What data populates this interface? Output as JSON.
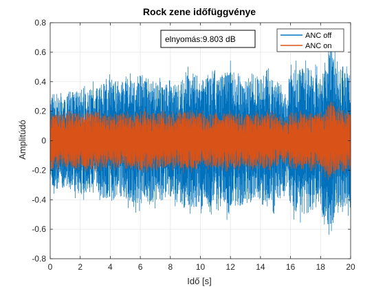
{
  "chart_data": {
    "type": "line",
    "title": "Rock zene időfüggvénye",
    "xlabel": "Idő [s]",
    "ylabel": "Amplitúdó",
    "xlim": [
      0,
      20
    ],
    "ylim": [
      -0.8,
      0.8
    ],
    "x_ticks": [
      "0",
      "2",
      "4",
      "6",
      "8",
      "10",
      "12",
      "14",
      "16",
      "18",
      "20"
    ],
    "y_ticks": [
      "-0.8",
      "-0.6",
      "-0.4",
      "-0.2",
      "0",
      "0.2",
      "0.4",
      "0.6",
      "0.8"
    ],
    "grid": true,
    "legend_position": "top-right",
    "annotation": "elnyomás:9.803 dB",
    "series": [
      {
        "name": "ANC off",
        "color": "#0072BD",
        "envelope_time": [
          0,
          1,
          2,
          3,
          4,
          5,
          6,
          7,
          8,
          9,
          10,
          11,
          12,
          13,
          14,
          15,
          15.8,
          16,
          17,
          18,
          18.7,
          19,
          20
        ],
        "envelope_amplitude": [
          0.33,
          0.32,
          0.38,
          0.35,
          0.42,
          0.4,
          0.45,
          0.42,
          0.38,
          0.47,
          0.44,
          0.48,
          0.5,
          0.42,
          0.44,
          0.45,
          0.3,
          0.48,
          0.5,
          0.45,
          0.65,
          0.55,
          0.45
        ]
      },
      {
        "name": "ANC on",
        "color": "#D95319",
        "envelope_time": [
          0,
          1,
          2,
          3,
          4,
          5,
          6,
          7,
          8,
          9,
          10,
          11,
          12,
          13,
          14,
          15,
          15.8,
          16,
          17,
          18,
          18.7,
          19,
          20
        ],
        "envelope_amplitude": [
          0.2,
          0.18,
          0.19,
          0.2,
          0.18,
          0.19,
          0.2,
          0.19,
          0.18,
          0.2,
          0.19,
          0.18,
          0.19,
          0.18,
          0.19,
          0.18,
          0.14,
          0.2,
          0.19,
          0.19,
          0.27,
          0.22,
          0.2
        ]
      }
    ]
  }
}
